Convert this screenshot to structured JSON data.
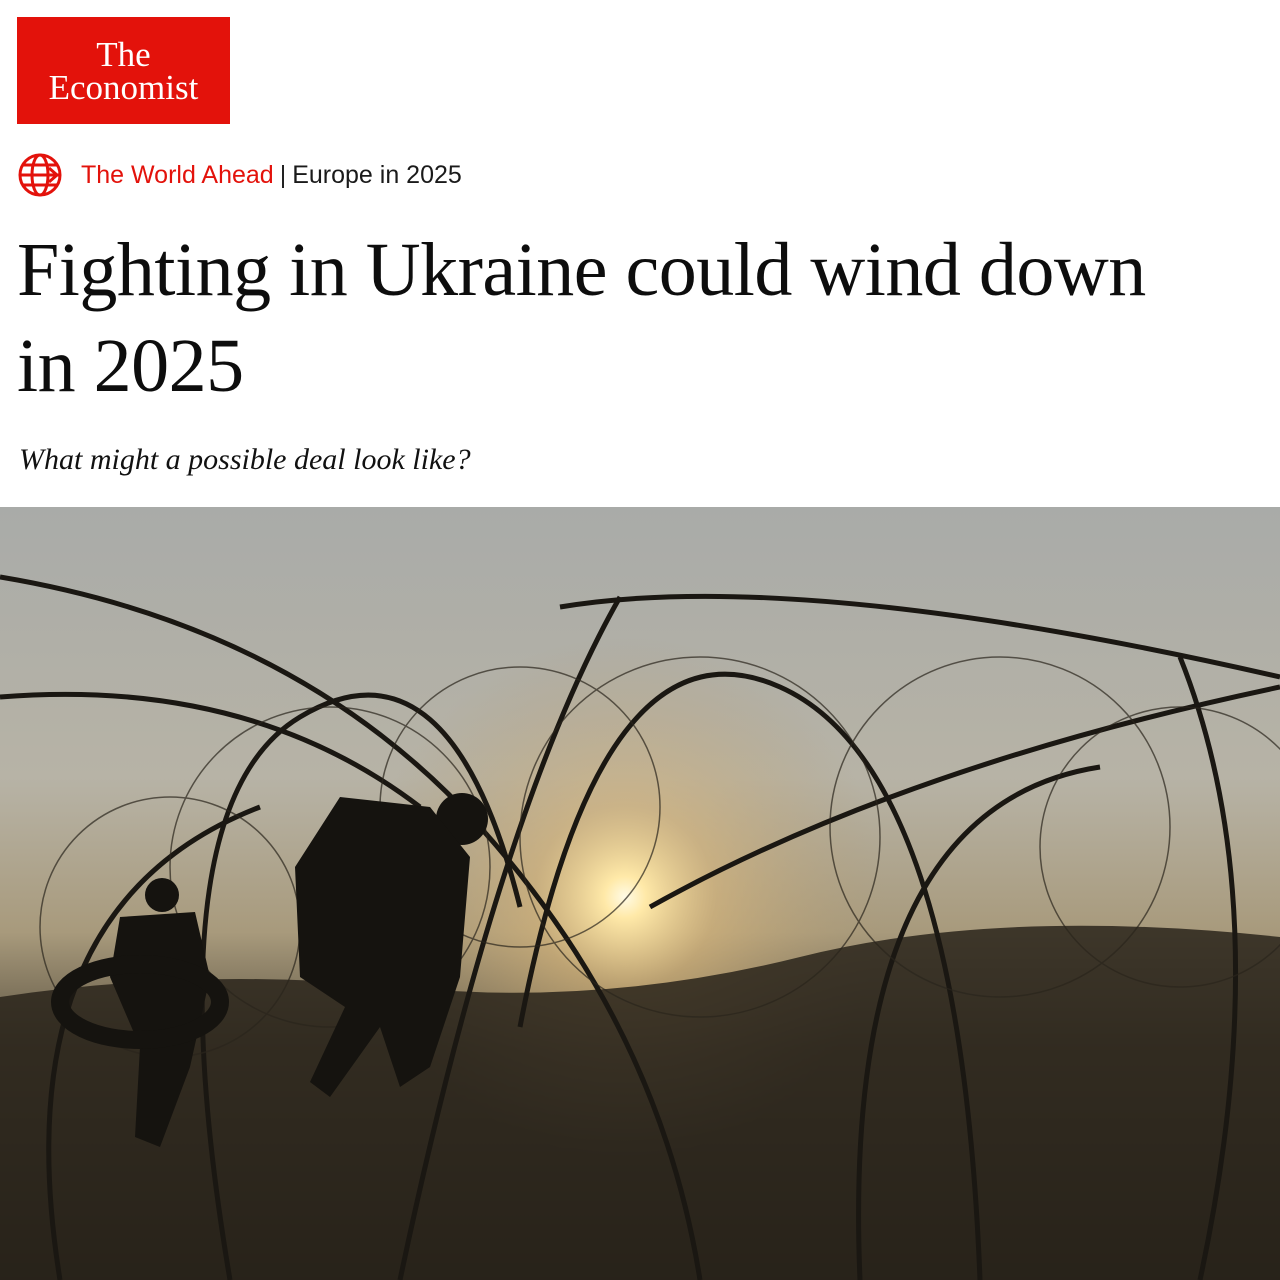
{
  "brand": {
    "name_line1": "The",
    "name_line2": "Economist",
    "color": "#e3120b"
  },
  "kicker": {
    "icon": "globe-icon",
    "section": "The World Ahead",
    "separator": "|",
    "subsection": "Europe in 2025"
  },
  "article": {
    "headline": "Fighting in Ukraine could wind down in 2025",
    "standfirst": "What might a possible deal look like?"
  },
  "image": {
    "subject": "soldiers-behind-barbed-wire-at-sunset"
  }
}
